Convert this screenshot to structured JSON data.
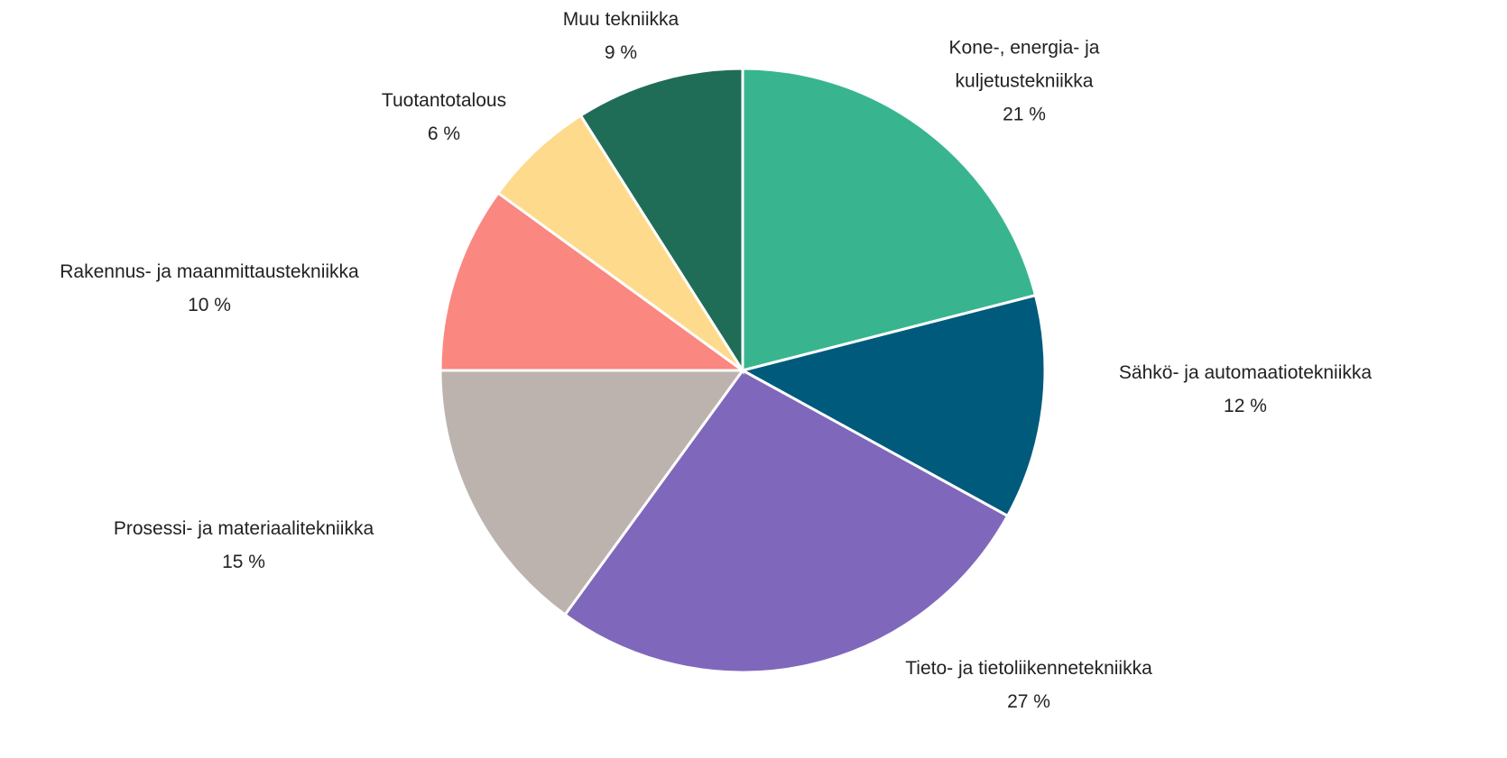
{
  "chart_data": {
    "type": "pie",
    "categories": [
      "Kone-, energia- ja kuljetustekniikka",
      "Sähkö- ja automaatiotekniikka",
      "Tieto- ja tietoliikennetekniikka",
      "Prosessi- ja materiaalitekniikka",
      "Rakennus- ja maanmittaustekniikka",
      "Tuotantotalous",
      "Muu tekniikka"
    ],
    "values": [
      21,
      12,
      27,
      15,
      10,
      6,
      9
    ],
    "value_labels": [
      "21 %",
      "12 %",
      "27 %",
      "15 %",
      "10 %",
      "6 %",
      "9 %"
    ],
    "colors": [
      "#38b58f",
      "#005a7c",
      "#7f68bb",
      "#bdb3ae",
      "#fa8780",
      "#fedb8c",
      "#1f6d57"
    ]
  }
}
